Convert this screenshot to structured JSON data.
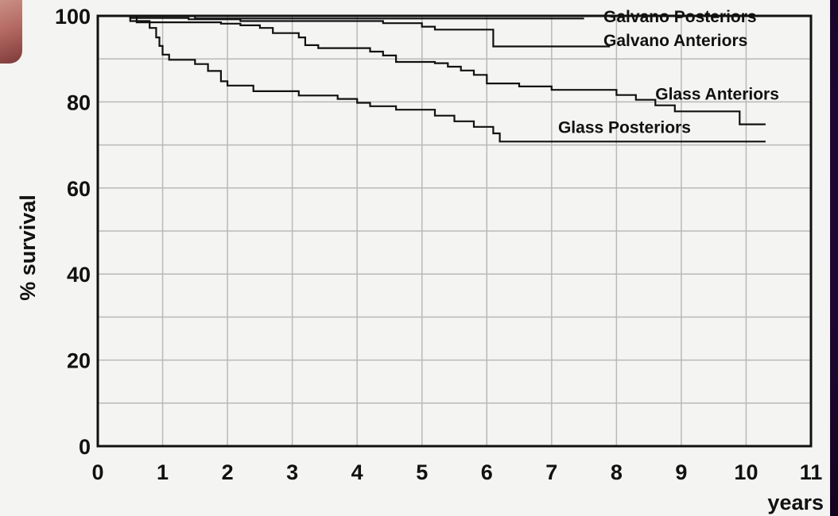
{
  "chart_data": {
    "type": "line",
    "step": true,
    "title": "",
    "xlabel": "years",
    "ylabel": "% survival",
    "xlim": [
      0,
      11
    ],
    "ylim": [
      0,
      100
    ],
    "x_ticks": [
      0,
      1,
      2,
      3,
      4,
      5,
      6,
      7,
      8,
      9,
      10,
      11
    ],
    "y_ticks": [
      0,
      20,
      40,
      60,
      80,
      100
    ],
    "grid": true,
    "line_color": "#111111",
    "background": "#f4f4f2",
    "series": [
      {
        "name": "Galvano Posteriors",
        "x": [
          0,
          1.5,
          7.5
        ],
        "y": [
          100,
          99.4,
          99.4
        ],
        "label_at": [
          7.8,
          98.5
        ]
      },
      {
        "name": "Galvano Anteriors",
        "x": [
          0,
          0.5,
          1.4,
          2.2,
          4.4,
          5.0,
          5.2,
          6.1,
          7.9
        ],
        "y": [
          100,
          99.5,
          99.2,
          98.8,
          98.3,
          97.5,
          96.8,
          92.9,
          92.9
        ],
        "label_at": [
          7.8,
          93
        ]
      },
      {
        "name": "Glass Anteriors",
        "x": [
          0,
          0.6,
          1.3,
          1.9,
          2.2,
          2.5,
          2.7,
          3.1,
          3.2,
          3.4,
          4.2,
          4.4,
          4.6,
          5.2,
          5.4,
          5.6,
          5.8,
          6.0,
          6.5,
          7.0,
          8.0,
          8.3,
          8.6,
          8.9,
          9.2,
          9.9,
          10.3
        ],
        "y": [
          100,
          98.5,
          98.5,
          98.2,
          97.8,
          97.2,
          96.0,
          95.0,
          93.2,
          92.5,
          91.7,
          90.8,
          89.3,
          89.0,
          88.2,
          87.3,
          86.3,
          84.3,
          83.6,
          82.8,
          81.6,
          80.5,
          79.2,
          77.8,
          77.8,
          74.8,
          74.8
        ],
        "label_at": [
          8.6,
          80.5
        ]
      },
      {
        "name": "Glass Posteriors",
        "x": [
          0,
          0.5,
          0.8,
          0.9,
          0.95,
          1.0,
          1.1,
          1.5,
          1.7,
          1.9,
          2.0,
          2.4,
          3.1,
          3.7,
          4.0,
          4.2,
          4.6,
          5.2,
          5.5,
          5.8,
          6.1,
          6.2,
          10.3
        ],
        "y": [
          100,
          98.8,
          97.2,
          95.0,
          93.0,
          91.0,
          89.8,
          88.8,
          87.2,
          84.8,
          83.8,
          82.5,
          81.5,
          80.7,
          79.8,
          79.0,
          78.2,
          76.8,
          75.5,
          74.2,
          72.7,
          70.8,
          70.8
        ],
        "label_at": [
          7.1,
          72.8
        ]
      }
    ]
  }
}
